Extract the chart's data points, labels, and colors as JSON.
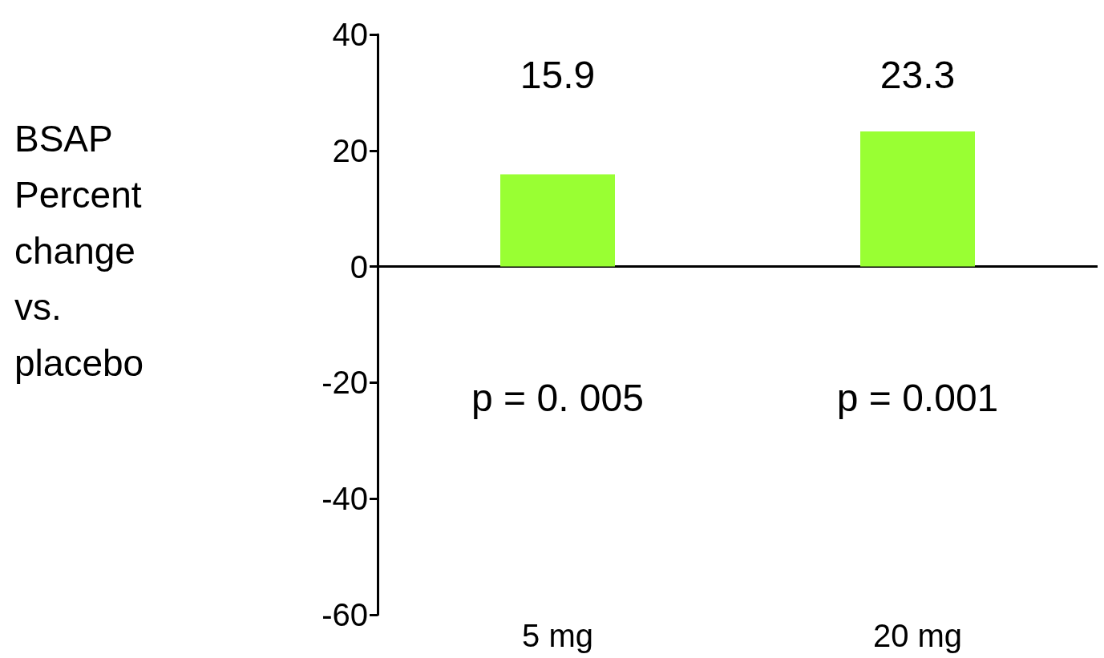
{
  "chart_data": {
    "type": "bar",
    "ylabel": "BSAP\nPercent\nchange\nvs.\nplacebo",
    "categories": [
      "5 mg",
      "20 mg"
    ],
    "values": [
      15.9,
      23.3
    ],
    "color": "#99ff33",
    "ylim": [
      -60,
      40
    ],
    "yticks": [
      -60,
      -40,
      -20,
      0,
      20,
      40
    ],
    "data_labels": true,
    "annotations": [
      "p = 0. 005",
      "p = 0.001"
    ]
  }
}
